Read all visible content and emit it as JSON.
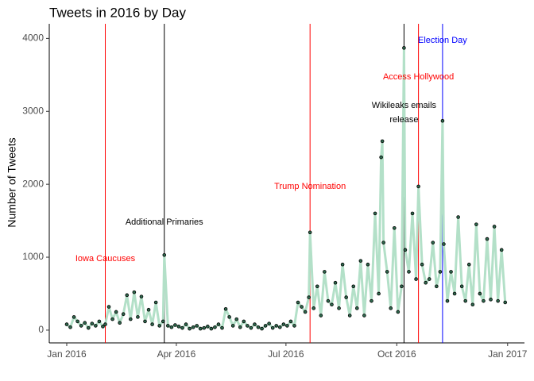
{
  "chart_data": {
    "type": "line",
    "title": "Tweets in 2016 by Day",
    "y_label": "Number of Tweets",
    "line_color": "#b3e0c8",
    "point_color": "#2f6b4f",
    "x": [
      0,
      3,
      6,
      9,
      12,
      15,
      18,
      21,
      24,
      27,
      30,
      32,
      35,
      38,
      41,
      44,
      47,
      50,
      53,
      56,
      59,
      62,
      65,
      68,
      71,
      74,
      77,
      80,
      81,
      84,
      87,
      90,
      93,
      96,
      99,
      102,
      105,
      108,
      111,
      114,
      117,
      120,
      123,
      126,
      129,
      132,
      135,
      138,
      141,
      144,
      147,
      150,
      153,
      156,
      159,
      162,
      165,
      168,
      171,
      174,
      177,
      180,
      183,
      186,
      189,
      192,
      195,
      198,
      201,
      202,
      205,
      208,
      211,
      214,
      217,
      220,
      223,
      226,
      229,
      232,
      235,
      238,
      241,
      244,
      247,
      250,
      253,
      256,
      259,
      261,
      262,
      263,
      266,
      269,
      272,
      275,
      278,
      280,
      281,
      284,
      287,
      290,
      292,
      295,
      298,
      301,
      304,
      307,
      310,
      312,
      313,
      316,
      319,
      322,
      325,
      328,
      331,
      334,
      337,
      340,
      343,
      346,
      349,
      352,
      355,
      358,
      361,
      364
    ],
    "values": [
      80,
      40,
      180,
      120,
      60,
      100,
      30,
      90,
      60,
      120,
      50,
      80,
      320,
      150,
      250,
      100,
      220,
      480,
      150,
      520,
      180,
      460,
      120,
      280,
      80,
      380,
      60,
      120,
      1030,
      60,
      40,
      70,
      50,
      30,
      80,
      20,
      40,
      60,
      20,
      30,
      50,
      20,
      40,
      80,
      30,
      290,
      180,
      60,
      150,
      40,
      120,
      60,
      30,
      80,
      40,
      20,
      60,
      90,
      30,
      60,
      40,
      80,
      60,
      120,
      60,
      380,
      320,
      250,
      450,
      1340,
      300,
      600,
      200,
      800,
      400,
      350,
      650,
      300,
      900,
      450,
      200,
      600,
      300,
      950,
      200,
      900,
      400,
      1600,
      500,
      2370,
      2590,
      1200,
      800,
      300,
      1400,
      250,
      600,
      3870,
      1100,
      800,
      1600,
      700,
      1970,
      900,
      650,
      700,
      1200,
      600,
      800,
      2870,
      1180,
      400,
      800,
      500,
      1550,
      600,
      400,
      900,
      350,
      1450,
      500,
      400,
      1250,
      420,
      1420,
      400,
      1100,
      380
    ],
    "xlim": [
      -14.5,
      380
    ],
    "ylim": [
      -175,
      4200
    ],
    "xticks": [
      {
        "value": 0,
        "label": "Jan 2016"
      },
      {
        "value": 91,
        "label": "Apr 2016"
      },
      {
        "value": 182,
        "label": "Jul 2016"
      },
      {
        "value": 274,
        "label": "Oct 2016"
      },
      {
        "value": 366,
        "label": "Jan 2017"
      }
    ],
    "yticks": [
      0,
      1000,
      2000,
      3000,
      4000
    ],
    "events": [
      {
        "label_lines": [
          "Iowa Caucuses"
        ],
        "x": 32,
        "color": "#ff0000"
      },
      {
        "label_lines": [
          "Additional Primaries"
        ],
        "x": 81,
        "color": "#000000"
      },
      {
        "label_lines": [
          "Trump Nomination"
        ],
        "x": 202,
        "color": "#ff0000"
      },
      {
        "label_lines": [
          "Wikileaks emails",
          "release"
        ],
        "x": 280,
        "color": "#000000"
      },
      {
        "label_lines": [
          "Access Hollywood"
        ],
        "x": 292,
        "color": "#ff0000"
      },
      {
        "label_lines": [
          "Election Day"
        ],
        "x": 312,
        "color": "#0000ff"
      }
    ]
  }
}
